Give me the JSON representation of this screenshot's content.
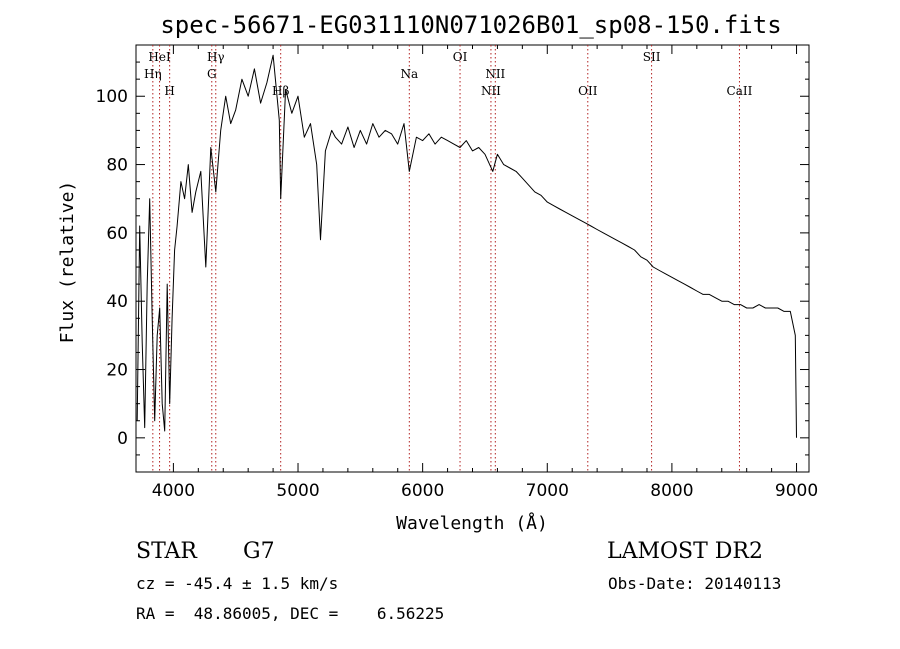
{
  "title": "spec-56671-EG031110N071026B01_sp08-150.fits",
  "info": {
    "class": "STAR",
    "subclass": "G7",
    "survey": "LAMOST DR2",
    "cz": "cz = -45.4 ± 1.5 km/s",
    "obs_date": "Obs-Date: 20140113",
    "coords": "RA =  48.86005, DEC =    6.56225"
  },
  "chart_data": {
    "type": "line",
    "xlabel": "Wavelength (Å)",
    "ylabel": "Flux (relative)",
    "xlim": [
      3700,
      9100
    ],
    "ylim": [
      -10,
      115
    ],
    "xticks": [
      4000,
      5000,
      6000,
      7000,
      8000,
      9000
    ],
    "yticks": [
      0,
      20,
      40,
      60,
      80,
      100
    ],
    "grid": false,
    "line_color": "#000000",
    "marker_color": "#b22222",
    "spectral_lines": [
      {
        "name": "Hη",
        "x": 3835,
        "row": 2
      },
      {
        "name": "HeI",
        "x": 3889,
        "row": 1
      },
      {
        "name": "H",
        "x": 3970,
        "row": 3
      },
      {
        "name": "Hγ",
        "x": 4340,
        "row": 1
      },
      {
        "name": "G",
        "x": 4308,
        "row": 2
      },
      {
        "name": "Hβ",
        "x": 4861,
        "row": 3
      },
      {
        "name": "Na",
        "x": 5893,
        "row": 2
      },
      {
        "name": "OI",
        "x": 6300,
        "row": 1
      },
      {
        "name": "NII",
        "x": 6583,
        "row": 2
      },
      {
        "name": "NII",
        "x": 6548,
        "row": 3
      },
      {
        "name": "OII",
        "x": 7325,
        "row": 3
      },
      {
        "name": "SII",
        "x": 7837,
        "row": 1
      },
      {
        "name": "CaII",
        "x": 8542,
        "row": 3
      }
    ],
    "series": [
      {
        "x": [
          3710,
          3730,
          3750,
          3770,
          3790,
          3810,
          3830,
          3850,
          3870,
          3890,
          3910,
          3930,
          3950,
          3970,
          3990,
          4010,
          4030,
          4060,
          4090,
          4120,
          4150,
          4180,
          4220,
          4260,
          4300,
          4340,
          4380,
          4420,
          4460,
          4500,
          4550,
          4600,
          4650,
          4700,
          4750,
          4800,
          4850,
          4861,
          4900,
          4950,
          5000,
          5050,
          5100,
          5150,
          5180,
          5220,
          5270,
          5300,
          5350,
          5400,
          5450,
          5500,
          5550,
          5600,
          5650,
          5700,
          5750,
          5800,
          5850,
          5893,
          5950,
          6000,
          6050,
          6100,
          6150,
          6200,
          6250,
          6300,
          6350,
          6400,
          6450,
          6500,
          6563,
          6600,
          6650,
          6700,
          6750,
          6800,
          6850,
          6900,
          6950,
          7000,
          7050,
          7100,
          7150,
          7200,
          7250,
          7300,
          7350,
          7400,
          7450,
          7500,
          7550,
          7600,
          7650,
          7700,
          7750,
          7800,
          7850,
          7900,
          7950,
          8000,
          8050,
          8100,
          8150,
          8200,
          8250,
          8300,
          8350,
          8400,
          8450,
          8500,
          8550,
          8600,
          8650,
          8700,
          8750,
          8800,
          8850,
          8900,
          8950,
          8990,
          9000
        ],
        "values": [
          5,
          62,
          28,
          3,
          45,
          70,
          35,
          5,
          30,
          38,
          10,
          2,
          45,
          10,
          35,
          55,
          62,
          75,
          70,
          80,
          66,
          72,
          78,
          50,
          85,
          72,
          90,
          100,
          92,
          96,
          105,
          100,
          108,
          98,
          104,
          112,
          93,
          70,
          102,
          95,
          100,
          88,
          92,
          80,
          58,
          84,
          90,
          88,
          86,
          91,
          85,
          90,
          86,
          92,
          88,
          90,
          89,
          86,
          92,
          78,
          88,
          87,
          89,
          86,
          88,
          87,
          86,
          85,
          87,
          84,
          85,
          83,
          78,
          83,
          80,
          79,
          78,
          76,
          74,
          72,
          71,
          69,
          68,
          67,
          66,
          65,
          64,
          63,
          62,
          61,
          60,
          59,
          58,
          57,
          56,
          55,
          53,
          52,
          50,
          49,
          48,
          47,
          46,
          45,
          44,
          43,
          42,
          42,
          41,
          40,
          40,
          39,
          39,
          38,
          38,
          39,
          38,
          38,
          38,
          37,
          37,
          30,
          0
        ]
      }
    ]
  }
}
